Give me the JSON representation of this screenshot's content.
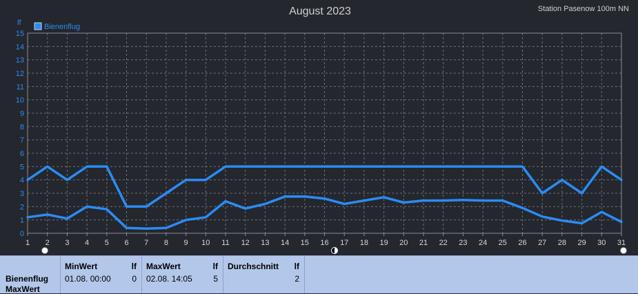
{
  "chart_data": {
    "type": "line",
    "title": "August 2023",
    "station": "Station Pasenow 100m NN",
    "ylabel": "lf",
    "ylim": [
      0,
      15
    ],
    "xlim": [
      1,
      31
    ],
    "yticks": [
      0,
      1,
      2,
      3,
      4,
      5,
      6,
      7,
      8,
      9,
      10,
      11,
      12,
      13,
      14,
      15
    ],
    "xticks": [
      1,
      2,
      3,
      4,
      5,
      6,
      7,
      8,
      9,
      10,
      11,
      12,
      13,
      14,
      15,
      16,
      17,
      18,
      19,
      20,
      21,
      22,
      23,
      24,
      25,
      26,
      27,
      28,
      29,
      30,
      31
    ],
    "grid": true,
    "legend": "top-left",
    "legend_label": "Bienenflug",
    "x": [
      1,
      2,
      3,
      4,
      5,
      6,
      7,
      8,
      9,
      10,
      11,
      12,
      13,
      14,
      15,
      16,
      17,
      18,
      19,
      20,
      21,
      22,
      23,
      24,
      25,
      26,
      27,
      28,
      29,
      30,
      31
    ],
    "series": [
      {
        "name": "",
        "color": "#2a8cf5",
        "values": [
          4,
          5,
          4,
          5,
          5,
          2,
          2,
          3,
          4,
          4,
          5,
          5,
          5,
          5,
          5,
          5,
          5,
          5,
          5,
          5,
          5,
          5,
          5,
          5,
          5,
          5,
          3,
          4,
          3,
          5,
          4
        ]
      },
      {
        "name": "",
        "color": "#2a8cf5",
        "values": [
          1.2,
          1.4,
          1.1,
          2.0,
          1.8,
          0.4,
          0.35,
          0.4,
          1.0,
          1.2,
          2.4,
          1.85,
          2.2,
          2.75,
          2.75,
          2.6,
          2.2,
          2.45,
          2.7,
          2.3,
          2.45,
          2.45,
          2.5,
          2.45,
          2.45,
          1.9,
          1.25,
          0.95,
          0.75,
          1.6,
          0.85
        ]
      }
    ]
  },
  "summary": {
    "row_label_1": "Bienenflug",
    "row_label_2": "MaxWert",
    "min_header": "MinWert",
    "min_unit": "lf",
    "min_time": "01.08.  00:00",
    "min_value": "0",
    "max_header": "MaxWert",
    "max_unit": "lf",
    "max_time": "02.08.  14:05",
    "max_value": "5",
    "avg_header": "Durchschnitt",
    "avg_unit": "lf",
    "avg_value": "2"
  },
  "colors": {
    "background": "#24272e",
    "plot_border": "#8a8d94",
    "grid": "#6e7178",
    "axis_text": "#2a8cf5",
    "x_text": "#d8d8d8",
    "summary_bg": "#b3c7ea"
  }
}
